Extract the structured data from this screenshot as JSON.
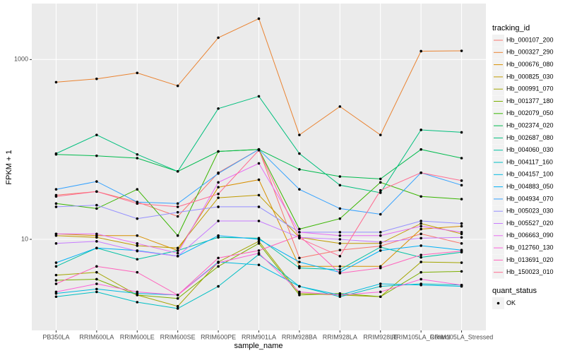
{
  "chart_data": {
    "type": "line",
    "x_label": "sample_name",
    "y_label": "FPKM + 1",
    "categories": [
      "PB350LA",
      "RRIM600LA",
      "RRIM600LE",
      "RRIM600SE",
      "RRIM600PE",
      "RRIM901LA",
      "RRIM928BA",
      "RRIM928LA",
      "RRIM928LE",
      "RRIM105LA_Control",
      "RRIM105LA_Stressed"
    ],
    "log_scale": true,
    "grid": true,
    "legend_position": "right",
    "ylim": [
      0.97,
      4200
    ],
    "yticks": [
      10,
      1000
    ],
    "legend_title": "tracking_id",
    "point_legend_title": "quant_status",
    "point_legend_label": "OK",
    "point_color": "#000000",
    "series": [
      {
        "name": "Hb_000107_200",
        "color": "#F8766D",
        "values": [
          31,
          34,
          26,
          18,
          55,
          100,
          6.2,
          7.6,
          8.4,
          11.5,
          9
        ]
      },
      {
        "name": "Hb_000327_290",
        "color": "#EA8331",
        "values": [
          560,
          610,
          710,
          510,
          1750,
          2850,
          145,
          300,
          145,
          1240,
          1250
        ]
      },
      {
        "name": "Hb_000676_080",
        "color": "#D89000",
        "values": [
          11.5,
          11,
          11,
          7.5,
          38,
          46,
          5,
          5,
          5,
          13,
          14
        ]
      },
      {
        "name": "Hb_000825_030",
        "color": "#C09B00",
        "values": [
          11,
          10.5,
          8.5,
          8,
          29,
          31,
          10.5,
          9,
          9,
          15,
          11.5
        ]
      },
      {
        "name": "Hb_000991_070",
        "color": "#A3A500",
        "values": [
          4,
          4.3,
          2.4,
          1.8,
          5.6,
          9.5,
          2.5,
          2.4,
          2.3,
          5.6,
          5.5
        ]
      },
      {
        "name": "Hb_001377_180",
        "color": "#7CAE00",
        "values": [
          3.5,
          3.6,
          2.4,
          2.2,
          5,
          9,
          2.4,
          2.5,
          2.3,
          4.3,
          4.4
        ]
      },
      {
        "name": "Hb_002079_050",
        "color": "#39B600",
        "values": [
          25,
          22,
          36,
          11,
          95,
          100,
          13,
          17,
          43,
          30,
          28
        ]
      },
      {
        "name": "Hb_002374_020",
        "color": "#00BB4E",
        "values": [
          88,
          85,
          80,
          57,
          95,
          100,
          60,
          50,
          47,
          100,
          80
        ]
      },
      {
        "name": "Hb_002687_080",
        "color": "#00BF7D",
        "values": [
          90,
          145,
          88,
          57,
          285,
          390,
          90,
          40,
          33,
          165,
          155
        ]
      },
      {
        "name": "Hb_004060_030",
        "color": "#00C1A3",
        "values": [
          5,
          8,
          6,
          7.5,
          10.5,
          10.3,
          4.8,
          4.6,
          8.2,
          6.3,
          7.2
        ]
      },
      {
        "name": "Hb_004117_160",
        "color": "#00BFC4",
        "values": [
          2.3,
          2.6,
          2,
          1.7,
          3,
          6.8,
          3,
          2.3,
          3,
          3.2,
          3.1
        ]
      },
      {
        "name": "Hb_004157_100",
        "color": "#00BAE0",
        "values": [
          2.5,
          2.8,
          2.5,
          2.4,
          5.6,
          5.2,
          3,
          2.4,
          3.2,
          3.1,
          3
        ]
      },
      {
        "name": "Hb_004883_050",
        "color": "#00B0F6",
        "values": [
          5.5,
          8,
          7.5,
          6.5,
          11,
          10,
          5.6,
          4.3,
          7.5,
          8.5,
          7.6
        ]
      },
      {
        "name": "Hb_004934_070",
        "color": "#35A2FF",
        "values": [
          36,
          44,
          26,
          25,
          54,
          100,
          36,
          22,
          19,
          55,
          40
        ]
      },
      {
        "name": "Hb_005023_030",
        "color": "#9590FF",
        "values": [
          23,
          24,
          17,
          20,
          23,
          23,
          12,
          12,
          12,
          16,
          15
        ]
      },
      {
        "name": "Hb_005527_020",
        "color": "#C77CFF",
        "values": [
          9,
          9.5,
          7.4,
          6.5,
          16,
          16,
          10.5,
          10,
          9.3,
          10.3,
          10.5
        ]
      },
      {
        "name": "Hb_006663_090",
        "color": "#E76BF3",
        "values": [
          11.5,
          11.5,
          9,
          7,
          43,
          70,
          12,
          11,
          11,
          14,
          12
        ]
      },
      {
        "name": "Hb_012760_130",
        "color": "#FA62DB",
        "values": [
          2.6,
          3.2,
          2.6,
          2.4,
          5.5,
          7,
          2.6,
          2.4,
          2.6,
          3.6,
          3.1
        ]
      },
      {
        "name": "Hb_013691_020",
        "color": "#FF62BC",
        "values": [
          3.2,
          5,
          4.3,
          2.4,
          6.2,
          7.5,
          11,
          4.2,
          4.8,
          6.7,
          7.4
        ]
      },
      {
        "name": "Hb_150023_010",
        "color": "#FF6C91",
        "values": [
          30,
          34,
          25,
          23,
          32,
          98,
          10.3,
          6.5,
          35,
          55,
          45
        ]
      }
    ]
  }
}
